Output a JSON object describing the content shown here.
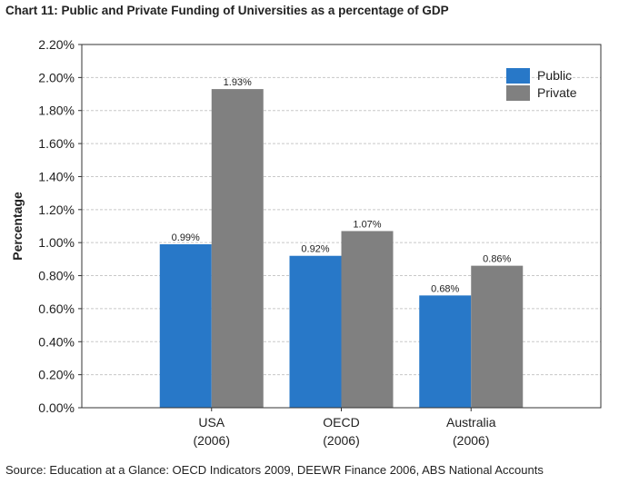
{
  "chart_title": "Chart 11: Public and Private Funding of Universities as a percentage of GDP",
  "source": "Source:  Education at a Glance: OECD Indicators 2009, DEEWR Finance 2006, ABS National Accounts",
  "colors": {
    "public": "#2878c8",
    "private": "#808080",
    "grid": "#c8c8c8"
  },
  "chart_data": {
    "type": "bar",
    "categories": [
      [
        "USA",
        "(2006)"
      ],
      [
        "OECD",
        "(2006)"
      ],
      [
        "Australia",
        "(2006)"
      ]
    ],
    "series": [
      {
        "name": "Public",
        "values": [
          0.99,
          0.92,
          0.68
        ],
        "labels": [
          "0.99%",
          "0.92%",
          "0.68%"
        ]
      },
      {
        "name": "Private",
        "values": [
          1.93,
          1.07,
          0.86
        ],
        "labels": [
          "1.93%",
          "1.07%",
          "0.86%"
        ]
      }
    ],
    "ylabel": "Percentage",
    "ylim": [
      0,
      2.2
    ],
    "yticks": [
      "0.00%",
      "0.20%",
      "0.40%",
      "0.60%",
      "0.80%",
      "1.00%",
      "1.20%",
      "1.40%",
      "1.60%",
      "1.80%",
      "2.00%",
      "2.20%"
    ],
    "grid": true,
    "legend_position": "top-right"
  }
}
